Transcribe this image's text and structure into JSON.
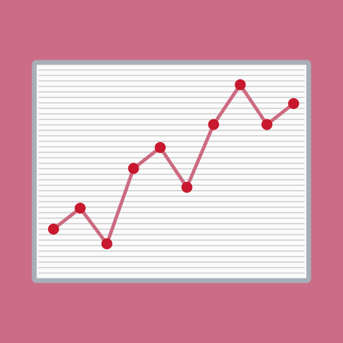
{
  "colors": {
    "background": "#cb6d86",
    "panel_fill": "#fbfbfb",
    "panel_border": "#a9afb9",
    "stripe": "#d7d7d9",
    "line": "#cc6a80",
    "marker": "#c8182e"
  },
  "chart_data": {
    "type": "line",
    "title": "",
    "xlabel": "",
    "ylabel": "",
    "grid": true,
    "legend": "none",
    "x": [
      1,
      2,
      3,
      4,
      5,
      6,
      7,
      8,
      9,
      10
    ],
    "ylim": [
      0,
      100
    ],
    "series": [
      {
        "values": [
          20,
          30,
          13,
          49,
          59,
          40,
          70,
          89,
          70,
          80
        ]
      }
    ]
  }
}
